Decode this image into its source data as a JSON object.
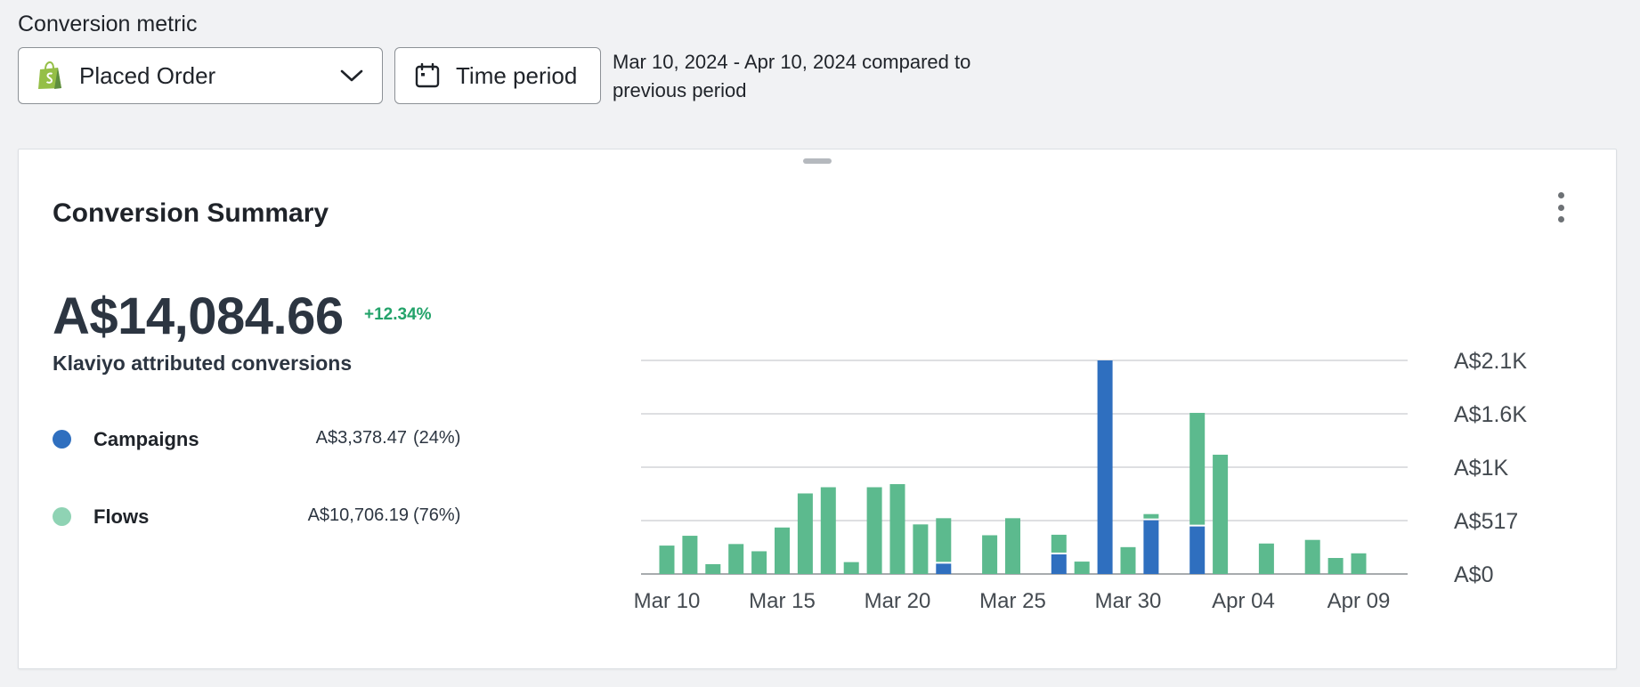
{
  "header": {
    "metric_label": "Conversion metric",
    "metric_selected": "Placed Order",
    "time_button_label": "Time period",
    "period_desc": "Mar 10, 2024 - Apr 10, 2024 compared to previous period"
  },
  "card": {
    "title": "Conversion Summary",
    "total_value": "A$14,084.66",
    "delta": "+12.34%",
    "subtitle": "Klaviyo attributed conversions",
    "legend": [
      {
        "name": "Campaigns",
        "amount": "A$3,378.47",
        "percent": "(24%)",
        "color": "#2f6fbf"
      },
      {
        "name": "Flows",
        "amount": "A$10,706.19",
        "percent": "(76%)",
        "color": "#5cba8e"
      }
    ]
  },
  "colors": {
    "campaigns": "#2f6fbf",
    "flows": "#5cba8e",
    "flows_legend": "#8fd3b4",
    "delta_positive": "#23a36a",
    "grid": "#c9ccd0"
  },
  "icons": {
    "metric_dropdown": "shopify-bag-icon",
    "dropdown_arrow": "chevron-down-icon",
    "time_button": "calendar-icon",
    "card_menu": "more-vertical-icon",
    "card_handle": "drag-handle-icon"
  },
  "chart_data": {
    "type": "bar",
    "stacked": true,
    "x_tick_labels": [
      "Mar 10",
      "Mar 15",
      "Mar 20",
      "Mar 25",
      "Mar 30",
      "Apr 04",
      "Apr 09"
    ],
    "y_tick_labels": [
      "A$0",
      "A$517",
      "A$1K",
      "A$1.6K",
      "A$2.1K"
    ],
    "y_tick_values": [
      0,
      517,
      1034,
      1551,
      2068
    ],
    "ylim": [
      0,
      2068
    ],
    "grid": true,
    "y_axis_position": "right",
    "categories": [
      "Mar 10",
      "Mar 11",
      "Mar 12",
      "Mar 13",
      "Mar 14",
      "Mar 15",
      "Mar 16",
      "Mar 17",
      "Mar 18",
      "Mar 19",
      "Mar 20",
      "Mar 21",
      "Mar 22",
      "Mar 23",
      "Mar 24",
      "Mar 25",
      "Mar 26",
      "Mar 27",
      "Mar 28",
      "Mar 29",
      "Mar 30",
      "Mar 31",
      "Apr 01",
      "Apr 02",
      "Apr 03",
      "Apr 04",
      "Apr 05",
      "Apr 06",
      "Apr 07",
      "Apr 08",
      "Apr 09"
    ],
    "series": [
      {
        "name": "Campaigns",
        "values": [
          0,
          0,
          0,
          0,
          0,
          0,
          0,
          0,
          0,
          0,
          0,
          0,
          100,
          0,
          0,
          0,
          0,
          190,
          0,
          2068,
          0,
          520,
          0,
          460,
          0,
          0,
          0,
          0,
          0,
          0,
          0
        ]
      },
      {
        "name": "Flows",
        "values": [
          275,
          370,
          95,
          290,
          220,
          450,
          780,
          840,
          115,
          840,
          870,
          480,
          440,
          0,
          375,
          540,
          0,
          190,
          120,
          0,
          260,
          60,
          0,
          1100,
          1155,
          0,
          295,
          0,
          330,
          155,
          200
        ]
      }
    ]
  }
}
